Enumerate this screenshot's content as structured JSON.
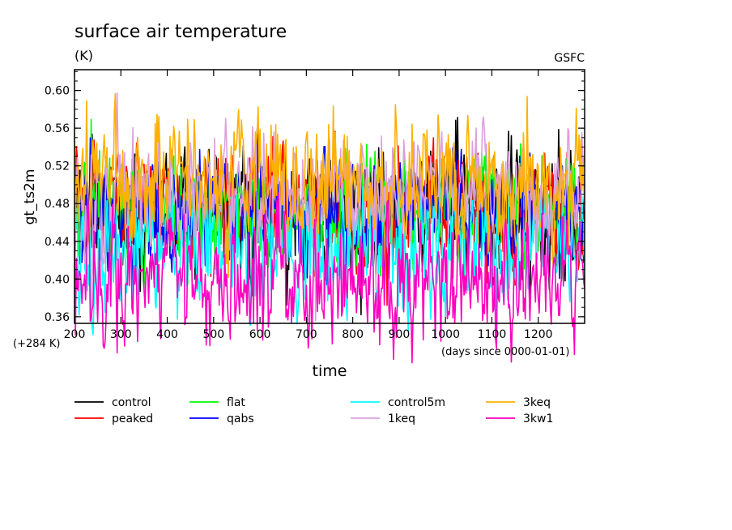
{
  "chart_data": {
    "type": "line",
    "title": "surface air temperature",
    "units": "(K)",
    "credit": "GSFC",
    "ylabel": "gt_ts2m",
    "xlabel": "time",
    "y_offset_note": "(+284 K)",
    "x_unit_note": "(days since 0000-01-01)",
    "xlim": [
      200,
      1300
    ],
    "ylim": [
      0.353,
      0.622
    ],
    "x_ticks": [
      200,
      300,
      400,
      500,
      600,
      700,
      800,
      900,
      1000,
      1100,
      1200
    ],
    "y_ticks": [
      "0.36",
      "0.40",
      "0.44",
      "0.48",
      "0.52",
      "0.56",
      "0.60"
    ],
    "y_tick_values": [
      0.36,
      0.4,
      0.44,
      0.48,
      0.52,
      0.56,
      0.6
    ],
    "legend_position": "bottom",
    "series": [
      {
        "name": "control",
        "color": "#000000",
        "mean": 0.475,
        "spread": 0.045,
        "seed": 11
      },
      {
        "name": "peaked",
        "color": "#ff0000",
        "mean": 0.475,
        "spread": 0.04,
        "seed": 23
      },
      {
        "name": "flat",
        "color": "#00ff00",
        "mean": 0.475,
        "spread": 0.04,
        "seed": 37
      },
      {
        "name": "qabs",
        "color": "#0000ff",
        "mean": 0.475,
        "spread": 0.04,
        "seed": 41
      },
      {
        "name": "control5m",
        "color": "#00ffff",
        "mean": 0.43,
        "spread": 0.045,
        "seed": 53
      },
      {
        "name": "1keq",
        "color": "#dda0dd",
        "mean": 0.49,
        "spread": 0.045,
        "seed": 67
      },
      {
        "name": "3keq",
        "color": "#ffb000",
        "mean": 0.505,
        "spread": 0.045,
        "seed": 79
      },
      {
        "name": "3kw1",
        "color": "#ff00c0",
        "mean": 0.4,
        "spread": 0.045,
        "seed": 97
      }
    ],
    "legend_order": [
      "control",
      "flat",
      "control5m",
      "3keq",
      "peaked",
      "qabs",
      "1keq",
      "3kw1"
    ]
  }
}
